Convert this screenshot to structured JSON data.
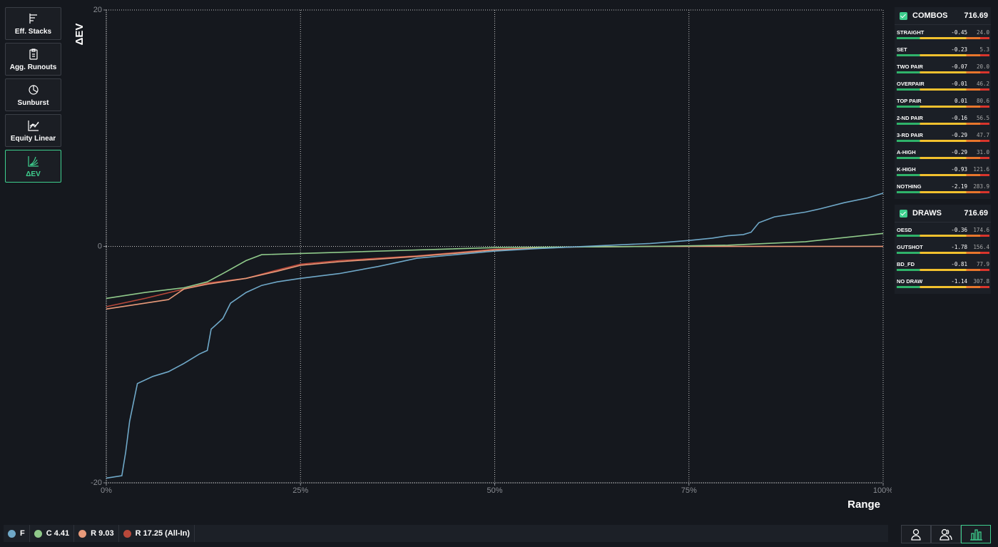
{
  "nav": [
    "Eff. Stacks",
    "Agg. Runouts",
    "Sunburst",
    "Equity Linear",
    "ΔEV"
  ],
  "chart_data": {
    "type": "line",
    "y_label": "ΔEV",
    "x_label": "Range",
    "xlim": [
      0,
      100
    ],
    "ylim": [
      -20,
      20
    ],
    "xticks": [
      {
        "value": 0,
        "label": "0%"
      },
      {
        "value": 25,
        "label": "25%"
      },
      {
        "value": 50,
        "label": "50%"
      },
      {
        "value": 75,
        "label": "75%"
      },
      {
        "value": 100,
        "label": "100%"
      }
    ],
    "yticks": [
      -20,
      0,
      20
    ],
    "grid": true,
    "series": [
      {
        "name": "F",
        "color": "#6fa8c8",
        "x": [
          0,
          2,
          2.5,
          3,
          4,
          6,
          8,
          10,
          12,
          13,
          13.5,
          14,
          15,
          16,
          18,
          20,
          22,
          25,
          30,
          35,
          40,
          45,
          50,
          55,
          60,
          65,
          70,
          75,
          78,
          80,
          82,
          83,
          84,
          86,
          88,
          90,
          92,
          95,
          98,
          100
        ],
        "values": [
          -19.6,
          -19.4,
          -17.4,
          -14.8,
          -11.6,
          -11,
          -10.6,
          -9.9,
          -9.1,
          -8.8,
          -7,
          -6.7,
          -6.1,
          -4.8,
          -3.9,
          -3.3,
          -3.0,
          -2.7,
          -2.3,
          -1.7,
          -1.0,
          -0.7,
          -0.4,
          -0.2,
          -0.05,
          0.1,
          0.25,
          0.5,
          0.7,
          0.9,
          1.0,
          1.2,
          2.0,
          2.5,
          2.7,
          2.9,
          3.2,
          3.7,
          4.1,
          4.5
        ]
      },
      {
        "name": "C 4.41",
        "color": "#8fc98a",
        "x": [
          0,
          5,
          10,
          13,
          15,
          18,
          20,
          25,
          30,
          40,
          50,
          60,
          70,
          75,
          80,
          90,
          100
        ],
        "values": [
          -4.4,
          -3.9,
          -3.5,
          -3.0,
          -2.3,
          -1.2,
          -0.7,
          -0.6,
          -0.5,
          -0.3,
          -0.1,
          -0.05,
          0,
          0.05,
          0.1,
          0.4,
          1.1
        ]
      },
      {
        "name": "R 9.03",
        "color": "#e89a7a",
        "x": [
          0,
          5,
          8,
          10,
          13,
          18,
          22,
          25,
          30,
          40,
          50,
          60,
          70,
          100
        ],
        "values": [
          -5.3,
          -4.8,
          -4.5,
          -3.6,
          -3.2,
          -2.7,
          -2.1,
          -1.6,
          -1.3,
          -0.85,
          -0.3,
          -0.05,
          0,
          0
        ]
      },
      {
        "name": "R 17.25 (All-In)",
        "color": "#b8483a",
        "x": [
          0,
          5,
          10,
          13,
          18,
          22,
          25,
          30,
          40,
          50,
          60,
          70,
          100
        ],
        "values": [
          -5.1,
          -4.4,
          -3.6,
          -3.1,
          -2.7,
          -2.0,
          -1.5,
          -1.2,
          -0.8,
          -0.25,
          -0.05,
          0,
          0
        ]
      }
    ]
  },
  "panels": [
    {
      "title": "COMBOS",
      "total": "716.69",
      "rows": [
        [
          "STRAIGHT",
          "-0.45",
          "24.0"
        ],
        [
          "SET",
          "-0.23",
          "5.3"
        ],
        [
          "TWO PAIR",
          "-0.07",
          "20.0"
        ],
        [
          "OVERPAIR",
          "-0.01",
          "46.2"
        ],
        [
          "TOP PAIR",
          "0.01",
          "80.6"
        ],
        [
          "2-ND PAIR",
          "-0.16",
          "56.5"
        ],
        [
          "3-RD PAIR",
          "-0.29",
          "47.7"
        ],
        [
          "A-HIGH",
          "-0.29",
          "31.0"
        ],
        [
          "K-HIGH",
          "-0.93",
          "121.6"
        ],
        [
          "NOTHING",
          "-2.19",
          "283.9"
        ]
      ]
    },
    {
      "title": "DRAWS",
      "total": "716.69",
      "rows": [
        [
          "OESD",
          "-0.36",
          "174.6"
        ],
        [
          "GUTSHOT",
          "-1.78",
          "156.4"
        ],
        [
          "BD_FD",
          "-0.81",
          "77.9"
        ],
        [
          "NO DRAW",
          "-1.14",
          "307.8"
        ]
      ]
    }
  ]
}
